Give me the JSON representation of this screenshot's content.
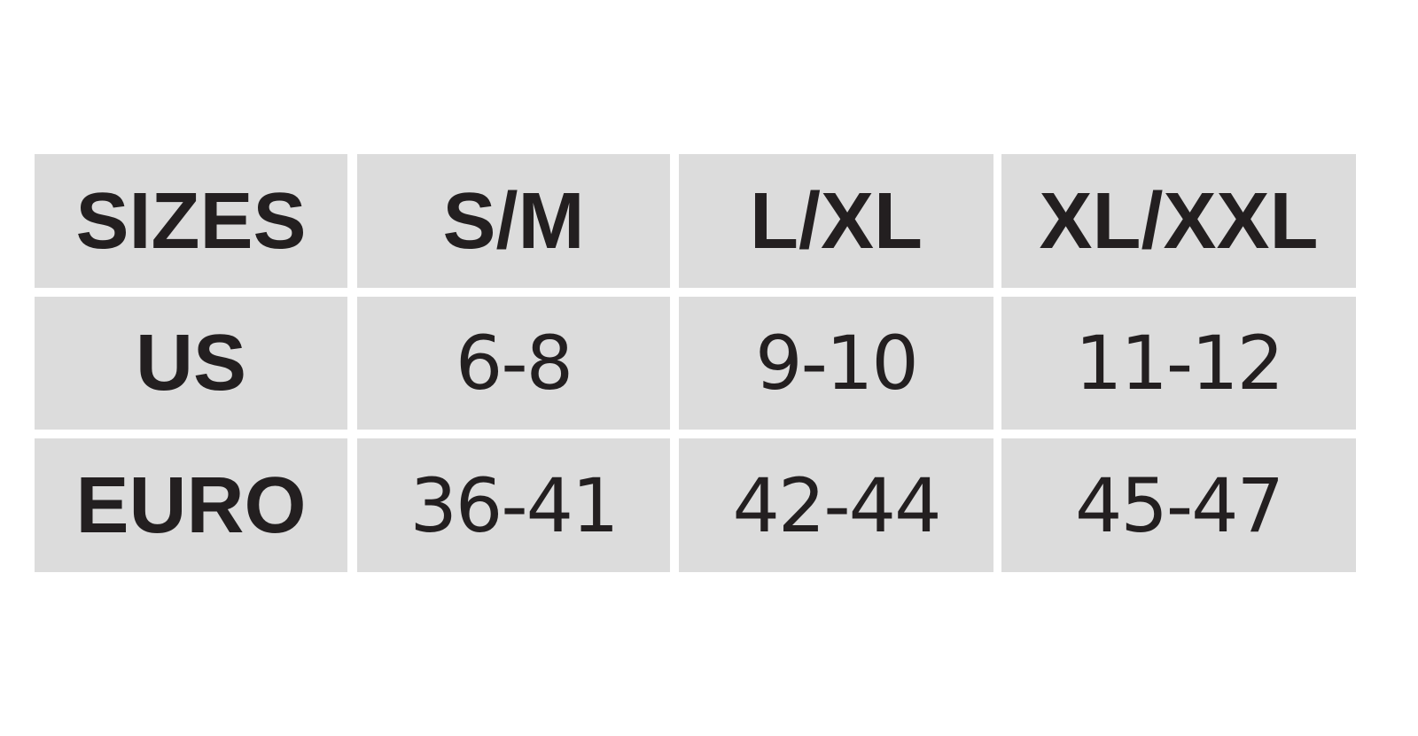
{
  "table": {
    "header": [
      "SIZES",
      "S/M",
      "L/XL",
      "XL/XXL"
    ],
    "rows": [
      [
        "US",
        "6-8",
        "9-10",
        "11-12"
      ],
      [
        "EURO",
        "36-41",
        "42-44",
        "45-47"
      ]
    ]
  },
  "colors": {
    "cell_background": "#dcdcdc",
    "text": "#231f20"
  }
}
